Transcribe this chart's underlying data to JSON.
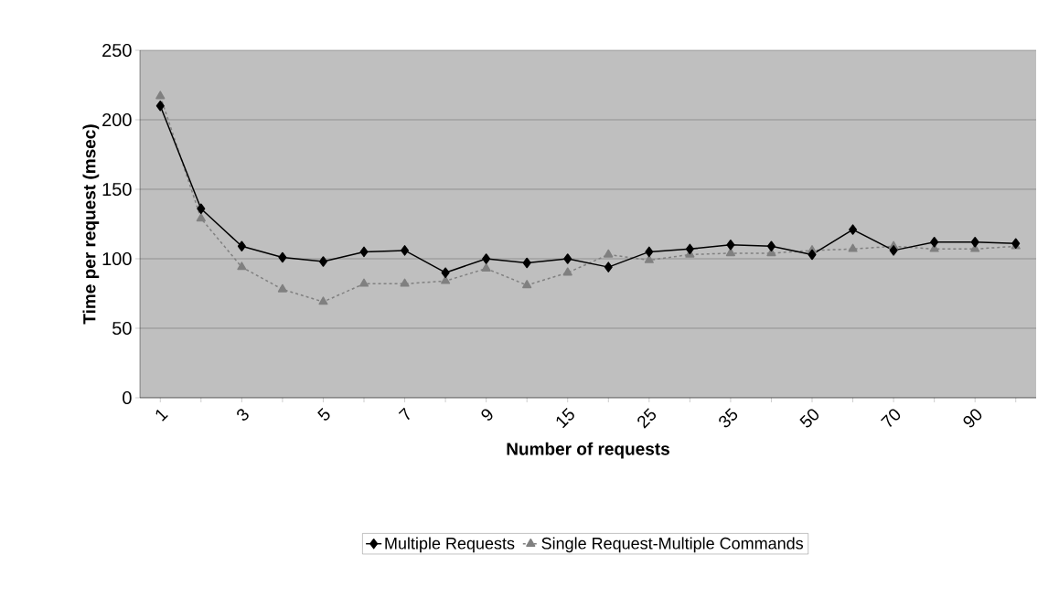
{
  "chart_data": {
    "type": "line",
    "xlabel": "Number of requests",
    "ylabel": "Time per request (msec)",
    "categories": [
      "1",
      null,
      "3",
      null,
      "5",
      null,
      "7",
      null,
      "9",
      null,
      "15",
      null,
      "25",
      null,
      "35",
      null,
      "50",
      null,
      "70",
      null,
      "90",
      null
    ],
    "series": [
      {
        "name": "Multiple Requests",
        "color": "#000000",
        "marker": "diamond",
        "line_style": "solid",
        "values": [
          210,
          136,
          109,
          101,
          98,
          105,
          106,
          90,
          100,
          97,
          100,
          94,
          105,
          107,
          110,
          109,
          103,
          121,
          106,
          112,
          112,
          111
        ]
      },
      {
        "name": "Single Request-Multiple Commands",
        "color": "#808080",
        "marker": "triangle",
        "line_style": "dashed",
        "values": [
          217,
          129,
          94,
          78,
          69,
          82,
          82,
          84,
          93,
          81,
          90,
          103,
          99,
          103,
          104,
          104,
          106,
          107,
          109,
          107,
          107,
          109
        ]
      }
    ],
    "ylim": [
      0,
      250
    ],
    "yticks": [
      0,
      50,
      100,
      150,
      200,
      250
    ],
    "grid": "y",
    "legend": "bottom"
  }
}
